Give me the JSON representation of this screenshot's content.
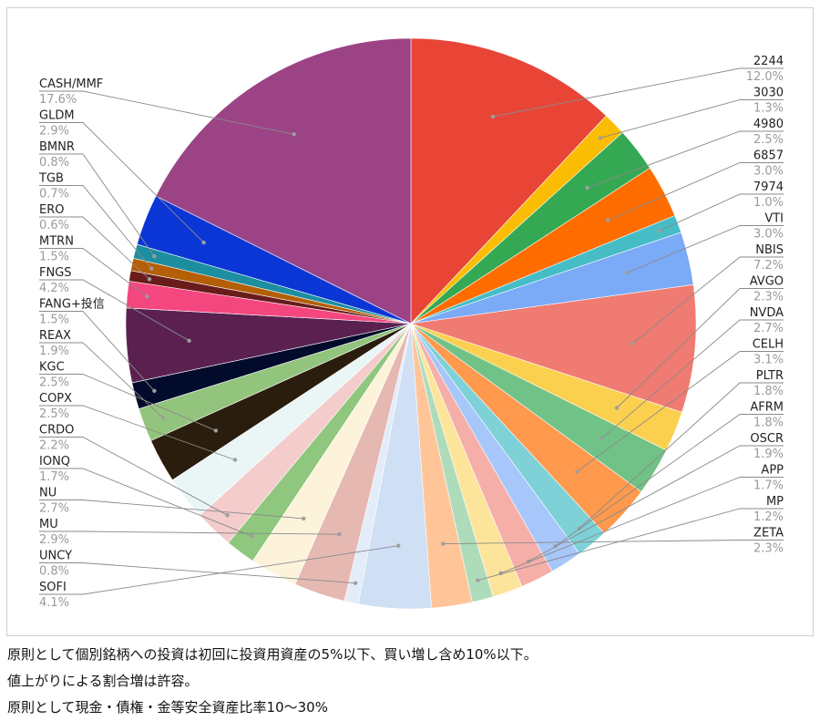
{
  "chart_data": {
    "type": "pie",
    "slices": [
      {
        "label": "2244",
        "value": 12.0,
        "pct_label": "12.0%",
        "color": "#e84537"
      },
      {
        "label": "3030",
        "value": 1.3,
        "pct_label": "1.3%",
        "color": "#fbbc04"
      },
      {
        "label": "4980",
        "value": 2.5,
        "pct_label": "2.5%",
        "color": "#34a853"
      },
      {
        "label": "6857",
        "value": 3.0,
        "pct_label": "3.0%",
        "color": "#ff6d01"
      },
      {
        "label": "7974",
        "value": 1.0,
        "pct_label": "1.0%",
        "color": "#46bdc6"
      },
      {
        "label": "VTI",
        "value": 3.0,
        "pct_label": "3.0%",
        "color": "#7baaf7"
      },
      {
        "label": "NBIS",
        "value": 7.2,
        "pct_label": "7.2%",
        "color": "#f07b72"
      },
      {
        "label": "AVGO",
        "value": 2.3,
        "pct_label": "2.3%",
        "color": "#fcd04f"
      },
      {
        "label": "NVDA",
        "value": 2.7,
        "pct_label": "2.7%",
        "color": "#71c287"
      },
      {
        "label": "CELH",
        "value": 3.1,
        "pct_label": "3.1%",
        "color": "#ff994d"
      },
      {
        "label": "PLTR",
        "value": 1.8,
        "pct_label": "1.8%",
        "color": "#7ed1d7"
      },
      {
        "label": "AFRM",
        "value": 1.8,
        "pct_label": "1.8%",
        "color": "#a7c6fa"
      },
      {
        "label": "OSCR",
        "value": 1.9,
        "pct_label": "1.9%",
        "color": "#f6aea9"
      },
      {
        "label": "APP",
        "value": 1.7,
        "pct_label": "1.7%",
        "color": "#fde49b"
      },
      {
        "label": "MP",
        "value": 1.2,
        "pct_label": "1.2%",
        "color": "#aedcba"
      },
      {
        "label": "ZETA",
        "value": 2.3,
        "pct_label": "2.3%",
        "color": "#ffc599"
      },
      {
        "label": "SOFI",
        "value": 4.1,
        "pct_label": "4.1%",
        "color": "#cfe0f5"
      },
      {
        "label": "UNCY",
        "value": 0.8,
        "pct_label": "0.8%",
        "color": "#e3ecf9"
      },
      {
        "label": "MU",
        "value": 2.9,
        "pct_label": "2.9%",
        "color": "#e6b8b2"
      },
      {
        "label": "NU",
        "value": 2.7,
        "pct_label": "2.7%",
        "color": "#fdf3da"
      },
      {
        "label": "IONQ",
        "value": 1.7,
        "pct_label": "1.7%",
        "color": "#8fc77e"
      },
      {
        "label": "CRDO",
        "value": 2.2,
        "pct_label": "2.2%",
        "color": "#f4cccc"
      },
      {
        "label": "COPX",
        "value": 2.5,
        "pct_label": "2.5%",
        "color": "#eaf6f6"
      },
      {
        "label": "KGC",
        "value": 2.5,
        "pct_label": "2.5%",
        "color": "#2b1d0e"
      },
      {
        "label": "REAX",
        "value": 1.9,
        "pct_label": "1.9%",
        "color": "#93c47d"
      },
      {
        "label": "FANG+投信",
        "value": 1.5,
        "pct_label": "1.5%",
        "color": "#020b2b"
      },
      {
        "label": "FNGS",
        "value": 4.2,
        "pct_label": "4.2%",
        "color": "#5a2150"
      },
      {
        "label": "MTRN",
        "value": 1.5,
        "pct_label": "1.5%",
        "color": "#f4467f"
      },
      {
        "label": "ERO",
        "value": 0.6,
        "pct_label": "0.6%",
        "color": "#6a1b1b"
      },
      {
        "label": "TGB",
        "value": 0.7,
        "pct_label": "0.7%",
        "color": "#b45f06"
      },
      {
        "label": "BMNR",
        "value": 0.8,
        "pct_label": "0.8%",
        "color": "#1c8ea0"
      },
      {
        "label": "GLDM",
        "value": 2.9,
        "pct_label": "2.9%",
        "color": "#0b36d6"
      },
      {
        "label": "CASH/MMF",
        "value": 17.6,
        "pct_label": "17.6%",
        "color": "#9c4386"
      }
    ]
  },
  "notes": [
    "原則として個別銘柄への投資は初回に投資用資産の5%以下、買い増し含め10%以下。",
    "値上がりによる割合増は許容。",
    "原則として現金・債権・金等安全資産比率10〜30%"
  ]
}
